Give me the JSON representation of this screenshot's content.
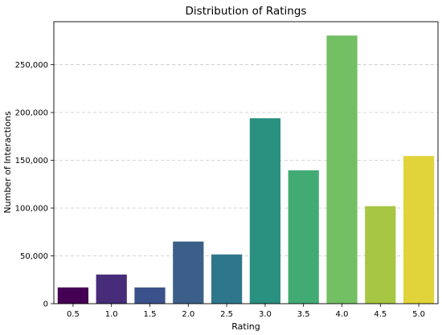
{
  "chart_data": {
    "type": "bar",
    "title": "Distribution of Ratings",
    "xlabel": "Rating",
    "ylabel": "Number of Interactions",
    "categories": [
      "0.5",
      "1.0",
      "1.5",
      "2.0",
      "2.5",
      "3.0",
      "3.5",
      "4.0",
      "4.5",
      "5.0"
    ],
    "values": [
      17000,
      30500,
      17000,
      65000,
      51500,
      194000,
      139500,
      280500,
      102000,
      154500
    ],
    "colors": [
      "#440154",
      "#482878",
      "#3e4989",
      "#31688e",
      "#26828e",
      "#1f9e89",
      "#35b779",
      "#6ece58",
      "#b5de2b",
      "#fde725"
    ],
    "bar_colors_observed": [
      "#440154",
      "#472c7a",
      "#3b518b",
      "#3b5f88",
      "#2e768c",
      "#2a9080",
      "#42ab74",
      "#73bf64",
      "#a6c644",
      "#e1d43a"
    ],
    "ylim": [
      0,
      295000
    ],
    "yticks": [
      0,
      50000,
      100000,
      150000,
      200000,
      250000
    ],
    "ytick_labels": [
      "0",
      "50,000",
      "100,000",
      "150,000",
      "200,000",
      "250,000"
    ],
    "grid": "y-dashed",
    "legend": "none"
  }
}
